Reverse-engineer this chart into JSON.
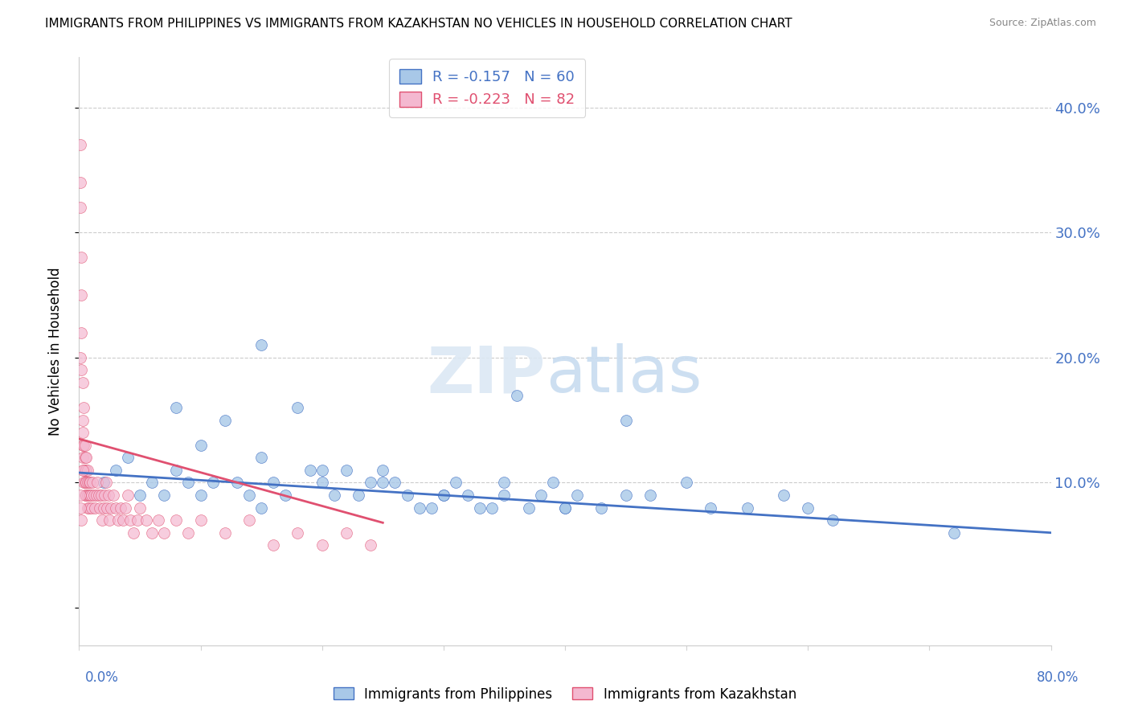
{
  "title": "IMMIGRANTS FROM PHILIPPINES VS IMMIGRANTS FROM KAZAKHSTAN NO VEHICLES IN HOUSEHOLD CORRELATION CHART",
  "source": "Source: ZipAtlas.com",
  "ylabel": "No Vehicles in Household",
  "ytick_vals": [
    0.0,
    0.1,
    0.2,
    0.3,
    0.4
  ],
  "xlim": [
    0.0,
    0.8
  ],
  "ylim": [
    -0.03,
    0.44
  ],
  "legend_r1": "-0.157",
  "legend_n1": "60",
  "legend_r2": "-0.223",
  "legend_n2": "82",
  "color_philippines": "#A8C8E8",
  "color_kazakhstan": "#F4B8D0",
  "color_trend_philippines": "#4472C4",
  "color_trend_kazakhstan": "#E05070",
  "philippines_x": [
    0.02,
    0.03,
    0.04,
    0.05,
    0.06,
    0.07,
    0.08,
    0.09,
    0.1,
    0.11,
    0.12,
    0.13,
    0.14,
    0.15,
    0.15,
    0.16,
    0.17,
    0.18,
    0.19,
    0.2,
    0.21,
    0.22,
    0.23,
    0.24,
    0.25,
    0.26,
    0.27,
    0.28,
    0.29,
    0.3,
    0.31,
    0.32,
    0.33,
    0.34,
    0.35,
    0.36,
    0.37,
    0.38,
    0.39,
    0.4,
    0.41,
    0.43,
    0.45,
    0.47,
    0.5,
    0.52,
    0.55,
    0.58,
    0.62,
    0.72,
    0.08,
    0.1,
    0.15,
    0.2,
    0.25,
    0.3,
    0.35,
    0.4,
    0.45,
    0.6
  ],
  "philippines_y": [
    0.1,
    0.11,
    0.12,
    0.09,
    0.1,
    0.09,
    0.11,
    0.1,
    0.09,
    0.1,
    0.15,
    0.1,
    0.09,
    0.08,
    0.21,
    0.1,
    0.09,
    0.16,
    0.11,
    0.1,
    0.09,
    0.11,
    0.09,
    0.1,
    0.1,
    0.1,
    0.09,
    0.08,
    0.08,
    0.09,
    0.1,
    0.09,
    0.08,
    0.08,
    0.09,
    0.17,
    0.08,
    0.09,
    0.1,
    0.08,
    0.09,
    0.08,
    0.09,
    0.09,
    0.1,
    0.08,
    0.08,
    0.09,
    0.07,
    0.06,
    0.16,
    0.13,
    0.12,
    0.11,
    0.11,
    0.09,
    0.1,
    0.08,
    0.15,
    0.08
  ],
  "kazakhstan_x": [
    0.001,
    0.001,
    0.001,
    0.001,
    0.002,
    0.002,
    0.002,
    0.002,
    0.003,
    0.003,
    0.003,
    0.003,
    0.003,
    0.004,
    0.004,
    0.004,
    0.004,
    0.005,
    0.005,
    0.005,
    0.005,
    0.005,
    0.006,
    0.006,
    0.006,
    0.006,
    0.007,
    0.007,
    0.007,
    0.007,
    0.008,
    0.008,
    0.008,
    0.009,
    0.009,
    0.01,
    0.01,
    0.011,
    0.012,
    0.013,
    0.014,
    0.015,
    0.016,
    0.017,
    0.018,
    0.019,
    0.02,
    0.021,
    0.022,
    0.023,
    0.024,
    0.025,
    0.026,
    0.028,
    0.03,
    0.032,
    0.034,
    0.036,
    0.038,
    0.04,
    0.042,
    0.045,
    0.048,
    0.05,
    0.055,
    0.06,
    0.065,
    0.07,
    0.08,
    0.09,
    0.1,
    0.12,
    0.14,
    0.16,
    0.18,
    0.2,
    0.22,
    0.24,
    0.001,
    0.001,
    0.002,
    0.003
  ],
  "kazakhstan_y": [
    0.37,
    0.34,
    0.32,
    0.2,
    0.22,
    0.25,
    0.19,
    0.28,
    0.15,
    0.13,
    0.14,
    0.18,
    0.12,
    0.13,
    0.16,
    0.11,
    0.1,
    0.1,
    0.12,
    0.13,
    0.09,
    0.11,
    0.11,
    0.1,
    0.12,
    0.09,
    0.09,
    0.11,
    0.1,
    0.08,
    0.09,
    0.1,
    0.08,
    0.09,
    0.1,
    0.08,
    0.09,
    0.1,
    0.09,
    0.08,
    0.09,
    0.1,
    0.09,
    0.08,
    0.09,
    0.07,
    0.08,
    0.09,
    0.1,
    0.08,
    0.09,
    0.07,
    0.08,
    0.09,
    0.08,
    0.07,
    0.08,
    0.07,
    0.08,
    0.09,
    0.07,
    0.06,
    0.07,
    0.08,
    0.07,
    0.06,
    0.07,
    0.06,
    0.07,
    0.06,
    0.07,
    0.06,
    0.07,
    0.05,
    0.06,
    0.05,
    0.06,
    0.05,
    0.09,
    0.08,
    0.07,
    0.11
  ],
  "phil_trend_x": [
    0.0,
    0.8
  ],
  "phil_trend_y": [
    0.108,
    0.06
  ],
  "kaz_trend_x": [
    0.0,
    0.25
  ],
  "kaz_trend_y": [
    0.135,
    0.068
  ]
}
